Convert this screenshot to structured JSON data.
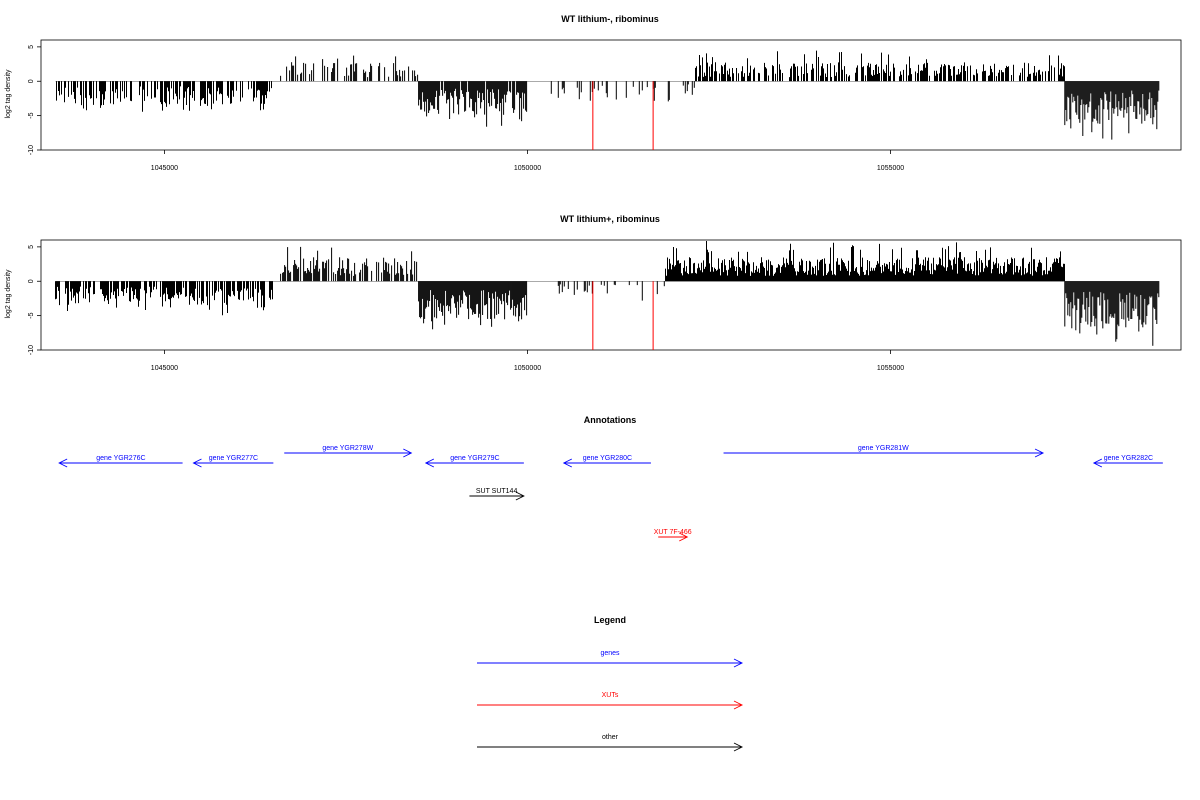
{
  "chart_data": [
    {
      "type": "bar",
      "panel": "track-1",
      "title": "WT lithium-, ribominus",
      "ylabel": "log2 tag density",
      "ylim": [
        -10,
        6
      ],
      "xlim": [
        1043300,
        1059000
      ],
      "yticks": [
        -10,
        -5,
        0,
        5
      ],
      "ytick_labels": [
        "-10",
        "-5",
        "0",
        "5"
      ],
      "xticks": [
        1045000,
        1050000,
        1055000
      ],
      "xtick_labels": [
        "1045000",
        "1050000",
        "1055000"
      ],
      "baseline": 0,
      "colors": {
        "bars": "#000000",
        "outlier": "#ff0000",
        "baseline": "#000000"
      },
      "segments": [
        {
          "strand": "minus",
          "start": 1043500,
          "end": 1046500,
          "mean": -2.5,
          "peak": -4.5,
          "density": 0.55
        },
        {
          "strand": "plus",
          "start": 1046600,
          "end": 1048500,
          "mean": 2.0,
          "peak": 4.0,
          "density": 0.45
        },
        {
          "strand": "minus",
          "start": 1048500,
          "end": 1050000,
          "mean": -3.5,
          "peak": -7.0,
          "density": 0.95
        },
        {
          "strand": "minus",
          "start": 1050300,
          "end": 1052300,
          "mean": -1.5,
          "peak": -3.0,
          "density": 0.2
        },
        {
          "strand": "plus",
          "start": 1052300,
          "end": 1057400,
          "mean": 2.0,
          "peak": 4.5,
          "density": 0.6
        },
        {
          "strand": "minus",
          "start": 1057400,
          "end": 1058700,
          "mean": -4.5,
          "peak": -8.5,
          "density": 1.0
        }
      ],
      "outliers": [
        {
          "x": 1050900,
          "y": -10
        },
        {
          "x": 1051730,
          "y": -10
        }
      ]
    },
    {
      "type": "bar",
      "panel": "track-2",
      "title": "WT lithium+, ribominus",
      "ylabel": "log2 tag density",
      "ylim": [
        -10,
        6
      ],
      "xlim": [
        1043300,
        1059000
      ],
      "yticks": [
        -10,
        -5,
        0,
        5
      ],
      "ytick_labels": [
        "-10",
        "-5",
        "0",
        "5"
      ],
      "xticks": [
        1045000,
        1050000,
        1055000
      ],
      "xtick_labels": [
        "1045000",
        "1050000",
        "1055000"
      ],
      "baseline": 0,
      "colors": {
        "bars": "#000000",
        "outlier": "#ff0000",
        "baseline": "#000000"
      },
      "segments": [
        {
          "strand": "minus",
          "start": 1043500,
          "end": 1046500,
          "mean": -2.5,
          "peak": -5.0,
          "density": 0.6
        },
        {
          "strand": "plus",
          "start": 1046600,
          "end": 1048500,
          "mean": 2.5,
          "peak": 5.0,
          "density": 0.75
        },
        {
          "strand": "minus",
          "start": 1048500,
          "end": 1050000,
          "mean": -4.0,
          "peak": -7.5,
          "density": 1.0
        },
        {
          "strand": "minus",
          "start": 1050300,
          "end": 1051900,
          "mean": -1.5,
          "peak": -4.0,
          "density": 0.2
        },
        {
          "strand": "plus",
          "start": 1051900,
          "end": 1057400,
          "mean": 2.5,
          "peak": 6.0,
          "density": 1.0
        },
        {
          "strand": "minus",
          "start": 1057400,
          "end": 1058700,
          "mean": -5.0,
          "peak": -9.5,
          "density": 1.0
        }
      ],
      "outliers": [
        {
          "x": 1050900,
          "y": -10
        },
        {
          "x": 1051730,
          "y": -10
        }
      ]
    },
    {
      "type": "annotation",
      "panel": "annotations",
      "title": "Annotations",
      "xlim": [
        1043300,
        1059000
      ],
      "features": [
        {
          "label": "gene YGR276C",
          "start": 1043550,
          "end": 1045250,
          "strand": "-",
          "kind": "gene",
          "row": 1
        },
        {
          "label": "gene YGR277C",
          "start": 1045400,
          "end": 1046500,
          "strand": "-",
          "kind": "gene",
          "row": 1
        },
        {
          "label": "gene YGR278W",
          "start": 1046650,
          "end": 1048400,
          "strand": "+",
          "kind": "gene",
          "row": 0
        },
        {
          "label": "gene YGR279C",
          "start": 1048600,
          "end": 1049950,
          "strand": "-",
          "kind": "gene",
          "row": 1
        },
        {
          "label": "gene YGR280C",
          "start": 1050500,
          "end": 1051700,
          "strand": "-",
          "kind": "gene",
          "row": 1
        },
        {
          "label": "gene YGR281W",
          "start": 1052700,
          "end": 1057100,
          "strand": "+",
          "kind": "gene",
          "row": 0
        },
        {
          "label": "gene YGR282C",
          "start": 1057800,
          "end": 1058750,
          "strand": "-",
          "kind": "gene",
          "row": 1
        },
        {
          "label": "SUT SUT144",
          "start": 1049200,
          "end": 1049950,
          "strand": "+",
          "kind": "other",
          "row": 2
        },
        {
          "label": "XUT 7F-466",
          "start": 1051800,
          "end": 1052200,
          "strand": "+",
          "kind": "xut",
          "row": 3
        }
      ],
      "colors": {
        "gene": "#0000ff",
        "xut": "#ff0000",
        "other": "#000000"
      }
    },
    {
      "type": "legend",
      "panel": "legend",
      "title": "Legend",
      "entries": [
        {
          "label": "genes",
          "color": "#0000ff"
        },
        {
          "label": "XUTs",
          "color": "#ff0000"
        },
        {
          "label": "other",
          "color": "#000000"
        }
      ]
    }
  ]
}
